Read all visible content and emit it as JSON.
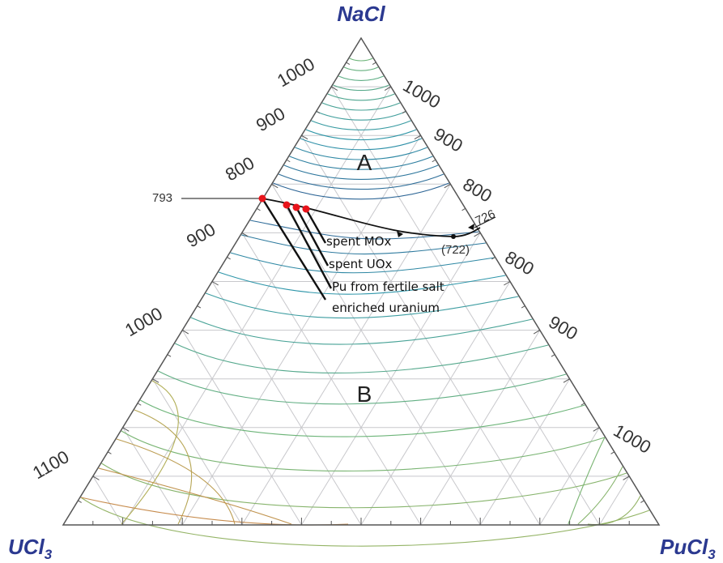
{
  "vertices": {
    "top": {
      "main": "NaCl",
      "sub": ""
    },
    "left": {
      "main": "UCl",
      "sub": "3"
    },
    "right": {
      "main": "PuCl",
      "sub": "3"
    }
  },
  "regions": [
    "A",
    "B"
  ],
  "isotherm_labels": {
    "left": [
      "1000",
      "900",
      "800",
      "900",
      "1000",
      "1100"
    ],
    "right": [
      "1000",
      "900",
      "800",
      "800",
      "900",
      "1000"
    ]
  },
  "points": {
    "azeotrope_left": "793",
    "eutectic_right": "726",
    "minimum": "(722)"
  },
  "fuel_paths": [
    {
      "label": "spent MOx"
    },
    {
      "label": "spent UOx"
    },
    {
      "label": "Pu from fertile salt"
    },
    {
      "label": "enriched uranium"
    }
  ],
  "colors": {
    "title": "#2b3990",
    "grid": "#c8c8cc",
    "frame": "#555555",
    "marker": "#e8141b",
    "path": "#111111",
    "iso_cold": "#2d4f8c",
    "iso_warm": "#c9874a"
  }
}
